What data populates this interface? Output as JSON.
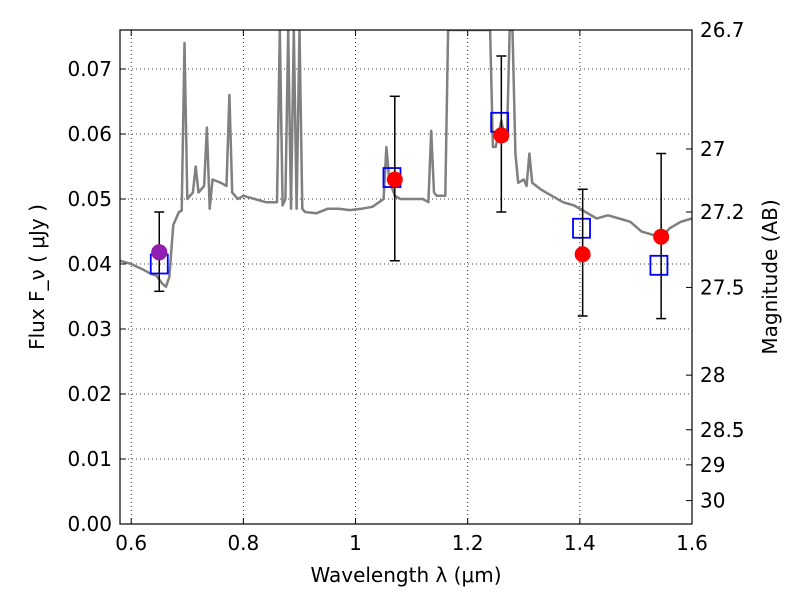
{
  "chart_data": {
    "type": "scatter",
    "xlabel": "Wavelength  λ (μm)",
    "ylabel": "Flux  F_ν  ( μJy )",
    "y2label": "Magnitude (AB)",
    "xlim": [
      0.58,
      1.6
    ],
    "ylim": [
      0.0,
      0.076
    ],
    "x_ticks": [
      0.6,
      0.8,
      1.0,
      1.2,
      1.4,
      1.6
    ],
    "x_tick_labels": [
      "0.6",
      "0.8",
      "1",
      "1.2",
      "1.4",
      "1.6"
    ],
    "y_ticks": [
      0.0,
      0.01,
      0.02,
      0.03,
      0.04,
      0.05,
      0.06,
      0.07
    ],
    "y_tick_labels": [
      "0.00",
      "0.01",
      "0.02",
      "0.03",
      "0.04",
      "0.05",
      "0.06",
      "0.07"
    ],
    "mag_ticks": [
      {
        "label": "26.7",
        "flux": 0.076
      },
      {
        "label": "27",
        "flux": 0.0577
      },
      {
        "label": "27.2",
        "flux": 0.048
      },
      {
        "label": "27.5",
        "flux": 0.0364
      },
      {
        "label": "28",
        "flux": 0.0229
      },
      {
        "label": "28.5",
        "flux": 0.0145
      },
      {
        "label": "29",
        "flux": 0.0091
      },
      {
        "label": "30",
        "flux": 0.0036
      }
    ],
    "grid": true,
    "model_sed": {
      "color": "#808080",
      "points": [
        [
          0.58,
          0.0405
        ],
        [
          0.6,
          0.04
        ],
        [
          0.62,
          0.0392
        ],
        [
          0.635,
          0.0385
        ],
        [
          0.645,
          0.0382
        ],
        [
          0.655,
          0.037
        ],
        [
          0.662,
          0.0365
        ],
        [
          0.668,
          0.038
        ],
        [
          0.675,
          0.046
        ],
        [
          0.68,
          0.047
        ],
        [
          0.685,
          0.048
        ],
        [
          0.69,
          0.0482
        ],
        [
          0.695,
          0.074
        ],
        [
          0.7,
          0.05
        ],
        [
          0.71,
          0.051
        ],
        [
          0.715,
          0.055
        ],
        [
          0.72,
          0.051
        ],
        [
          0.73,
          0.052
        ],
        [
          0.735,
          0.061
        ],
        [
          0.74,
          0.0485
        ],
        [
          0.745,
          0.053
        ],
        [
          0.76,
          0.0525
        ],
        [
          0.77,
          0.052
        ],
        [
          0.775,
          0.066
        ],
        [
          0.78,
          0.051
        ],
        [
          0.79,
          0.05
        ],
        [
          0.8,
          0.0505
        ],
        [
          0.82,
          0.05
        ],
        [
          0.84,
          0.0495
        ],
        [
          0.86,
          0.0495
        ],
        [
          0.865,
          0.076
        ],
        [
          0.87,
          0.049
        ],
        [
          0.875,
          0.05
        ],
        [
          0.88,
          0.076
        ],
        [
          0.885,
          0.0485
        ],
        [
          0.89,
          0.076
        ],
        [
          0.895,
          0.0485
        ],
        [
          0.9,
          0.076
        ],
        [
          0.905,
          0.0485
        ],
        [
          0.91,
          0.048
        ],
        [
          0.93,
          0.0478
        ],
        [
          0.95,
          0.0485
        ],
        [
          0.97,
          0.0485
        ],
        [
          0.99,
          0.0483
        ],
        [
          1.01,
          0.0485
        ],
        [
          1.03,
          0.0488
        ],
        [
          1.05,
          0.05
        ],
        [
          1.055,
          0.058
        ],
        [
          1.06,
          0.053
        ],
        [
          1.07,
          0.0505
        ],
        [
          1.08,
          0.05
        ],
        [
          1.1,
          0.05
        ],
        [
          1.12,
          0.05
        ],
        [
          1.13,
          0.0495
        ],
        [
          1.135,
          0.0605
        ],
        [
          1.14,
          0.051
        ],
        [
          1.145,
          0.0505
        ],
        [
          1.15,
          0.0505
        ],
        [
          1.16,
          0.0505
        ],
        [
          1.165,
          0.076
        ],
        [
          1.18,
          0.076
        ],
        [
          1.2,
          0.076
        ],
        [
          1.22,
          0.076
        ],
        [
          1.24,
          0.076
        ],
        [
          1.245,
          0.058
        ],
        [
          1.25,
          0.058
        ],
        [
          1.255,
          0.06
        ],
        [
          1.26,
          0.062
        ],
        [
          1.265,
          0.06
        ],
        [
          1.27,
          0.059
        ],
        [
          1.275,
          0.076
        ],
        [
          1.28,
          0.076
        ],
        [
          1.285,
          0.057
        ],
        [
          1.29,
          0.0525
        ],
        [
          1.3,
          0.053
        ],
        [
          1.305,
          0.052
        ],
        [
          1.31,
          0.057
        ],
        [
          1.315,
          0.0525
        ],
        [
          1.33,
          0.0515
        ],
        [
          1.35,
          0.0505
        ],
        [
          1.37,
          0.0495
        ],
        [
          1.39,
          0.049
        ],
        [
          1.41,
          0.048
        ],
        [
          1.43,
          0.047
        ],
        [
          1.45,
          0.0475
        ],
        [
          1.47,
          0.047
        ],
        [
          1.49,
          0.0465
        ],
        [
          1.51,
          0.045
        ],
        [
          1.53,
          0.0445
        ],
        [
          1.545,
          0.044
        ],
        [
          1.56,
          0.0455
        ],
        [
          1.58,
          0.0465
        ],
        [
          1.6,
          0.047
        ]
      ]
    },
    "observed": {
      "color": "#ff0000",
      "points": [
        {
          "x": 0.65,
          "y": 0.0418,
          "yerr_low": 0.0358,
          "yerr_high": 0.048
        },
        {
          "x": 1.07,
          "y": 0.053,
          "yerr_low": 0.0405,
          "yerr_high": 0.0658
        },
        {
          "x": 1.26,
          "y": 0.0598,
          "yerr_low": 0.048,
          "yerr_high": 0.072
        },
        {
          "x": 1.405,
          "y": 0.0415,
          "yerr_low": 0.032,
          "yerr_high": 0.0515
        },
        {
          "x": 1.545,
          "y": 0.0442,
          "yerr_low": 0.0316,
          "yerr_high": 0.057
        }
      ]
    },
    "special_point": {
      "x": 0.65,
      "y": 0.0418,
      "color": "#8e1fb0"
    },
    "model_photometry": {
      "color": "#0000ff",
      "points": [
        {
          "x": 0.65,
          "y": 0.04
        },
        {
          "x": 1.065,
          "y": 0.0533
        },
        {
          "x": 1.257,
          "y": 0.0618
        },
        {
          "x": 1.403,
          "y": 0.0455
        },
        {
          "x": 1.541,
          "y": 0.0398
        }
      ]
    }
  }
}
